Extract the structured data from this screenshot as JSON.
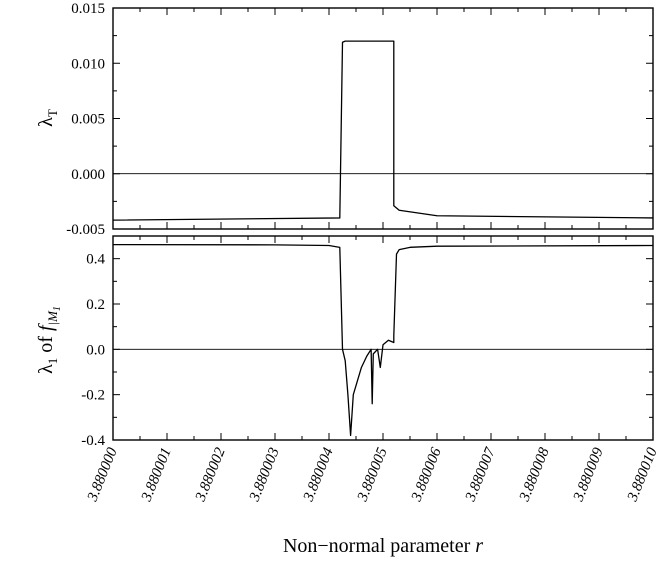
{
  "chart_data": [
    {
      "type": "line",
      "panel": "top",
      "ylabel_main": "λ",
      "ylabel_sub": "T",
      "xlim": [
        3.88,
        3.88001
      ],
      "ylim": [
        -0.005,
        0.015
      ],
      "yticks": [
        -0.005,
        0.0,
        0.005,
        0.01,
        0.015
      ],
      "ytick_labels": [
        "-0.005",
        "0.000",
        "0.005",
        "0.010",
        "0.015"
      ],
      "reference_line_y": 0.0,
      "series": [
        {
          "x": [
            3.88,
            3.8800042,
            3.88000425,
            3.8800043,
            3.8800052,
            3.8800052,
            3.8800053,
            3.880006,
            3.88001
          ],
          "y": [
            -0.0042,
            -0.004,
            0.0119,
            0.012,
            0.012,
            -0.0029,
            -0.0033,
            -0.0038,
            -0.004
          ]
        }
      ]
    },
    {
      "type": "line",
      "panel": "bottom",
      "ylabel_main": "λ",
      "ylabel_sub": "1",
      "ylabel_of": " of ",
      "ylabel_f": "f",
      "ylabel_f_sub": "|M",
      "ylabel_f_subsub": "1",
      "xlabel_text": "Non−normal parameter ",
      "xlabel_var": "r",
      "xlim": [
        3.88,
        3.88001
      ],
      "ylim": [
        -0.4,
        0.5
      ],
      "yticks": [
        -0.4,
        -0.2,
        0.0,
        0.2,
        0.4
      ],
      "ytick_labels": [
        "-0.4",
        "-0.2",
        "0.0",
        "0.2",
        "0.4"
      ],
      "xticks": [
        3.88,
        3.880001,
        3.880002,
        3.880003,
        3.880004,
        3.880005,
        3.880006,
        3.880007,
        3.880008,
        3.880009,
        3.88001
      ],
      "xtick_labels": [
        "3.880000",
        "3.880001",
        "3.880002",
        "3.880003",
        "3.880004",
        "3.880005",
        "3.880006",
        "3.880007",
        "3.880008",
        "3.880009",
        "3.880010"
      ],
      "reference_line_y": 0.0,
      "series": [
        {
          "x": [
            3.88,
            3.880003,
            3.880004,
            3.8800042,
            3.88000425,
            3.8800043,
            3.88000435,
            3.8800044,
            3.88000445,
            3.8800046,
            3.8800047,
            3.88000478,
            3.8800048,
            3.88000482,
            3.8800049,
            3.88000495,
            3.880005,
            3.8800051,
            3.8800052,
            3.8800052,
            3.88000525,
            3.8800053,
            3.8800055,
            3.880006,
            3.88001
          ],
          "y": [
            0.462,
            0.461,
            0.458,
            0.45,
            0.0,
            -0.05,
            -0.2,
            -0.38,
            -0.2,
            -0.08,
            -0.03,
            0.0,
            -0.24,
            -0.02,
            0.0,
            -0.08,
            0.02,
            0.04,
            0.03,
            0.06,
            0.42,
            0.44,
            0.45,
            0.455,
            0.458
          ]
        }
      ]
    }
  ]
}
